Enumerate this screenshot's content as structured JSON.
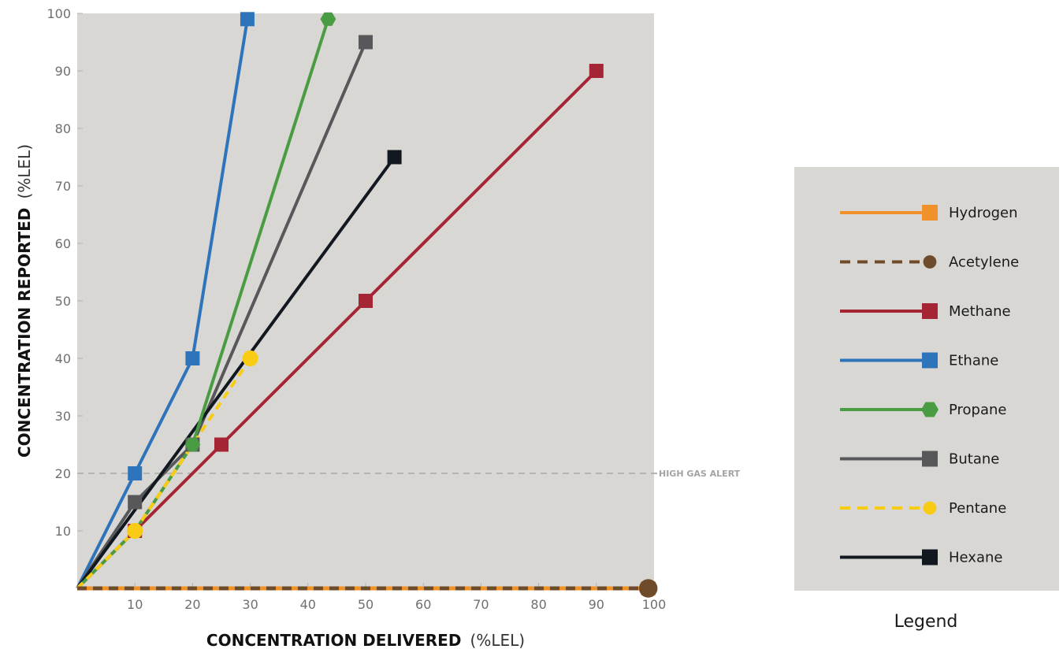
{
  "chart_data": {
    "type": "line",
    "xlabel": {
      "bold": "CONCENTRATION DELIVERED",
      "unit": "(%LEL)"
    },
    "ylabel": {
      "bold": "CONCENTRATION REPORTED",
      "unit": "(%LEL)"
    },
    "xlim": [
      0,
      100
    ],
    "ylim": [
      0,
      100
    ],
    "x_ticks": [
      10,
      20,
      30,
      40,
      50,
      60,
      70,
      80,
      90,
      100
    ],
    "y_ticks": [
      10,
      20,
      30,
      40,
      50,
      60,
      70,
      80,
      90,
      100
    ],
    "grid": false,
    "reference_line": {
      "y": 20,
      "label": "HIGH GAS ALERT",
      "color": "#b4b4b4",
      "dashed": true
    },
    "background_color": "#d9d7d4",
    "legend": {
      "title": "Legend",
      "placement": "right"
    },
    "series": [
      {
        "name": "Hydrogen",
        "color": "#f0912a",
        "dashed": false,
        "marker": "square",
        "points": [
          [
            0,
            0
          ],
          [
            99,
            0
          ]
        ],
        "marked": [
          1
        ]
      },
      {
        "name": "Acetylene",
        "color": "#6e4b2a",
        "dashed": true,
        "marker": "circle",
        "points": [
          [
            0,
            0
          ],
          [
            99,
            0
          ]
        ],
        "marked": [
          1
        ]
      },
      {
        "name": "Methane",
        "color": "#a52535",
        "dashed": false,
        "marker": "square",
        "points": [
          [
            0,
            0
          ],
          [
            10,
            10
          ],
          [
            25,
            25
          ],
          [
            50,
            50
          ],
          [
            90,
            90
          ]
        ],
        "marked": [
          1,
          2,
          3,
          4
        ]
      },
      {
        "name": "Ethane",
        "color": "#2e74bb",
        "dashed": false,
        "marker": "square",
        "points": [
          [
            0,
            0
          ],
          [
            10,
            20
          ],
          [
            20,
            40
          ],
          [
            29.5,
            99
          ]
        ],
        "marked": [
          1,
          2,
          3
        ]
      },
      {
        "name": "Propane",
        "color": "#4a9c43",
        "dashed": false,
        "marker": "hexagon",
        "points": [
          [
            0,
            0
          ],
          [
            10,
            10
          ],
          [
            20,
            25
          ],
          [
            43.5,
            99
          ]
        ],
        "marked": [
          1,
          2,
          3
        ]
      },
      {
        "name": "Butane",
        "color": "#58585b",
        "dashed": false,
        "marker": "square",
        "points": [
          [
            0,
            0
          ],
          [
            10,
            15
          ],
          [
            20,
            25
          ],
          [
            50,
            95
          ]
        ],
        "marked": [
          1,
          2,
          3
        ]
      },
      {
        "name": "Pentane",
        "color": "#f8cc15",
        "dashed": true,
        "marker": "circle",
        "points": [
          [
            0,
            0
          ],
          [
            10,
            10
          ],
          [
            30,
            40
          ]
        ],
        "marked": [
          1,
          2
        ]
      },
      {
        "name": "Hexane",
        "color": "#111820",
        "dashed": false,
        "marker": "square",
        "points": [
          [
            0,
            0
          ],
          [
            55,
            75
          ]
        ],
        "marked": [
          1
        ]
      }
    ]
  }
}
